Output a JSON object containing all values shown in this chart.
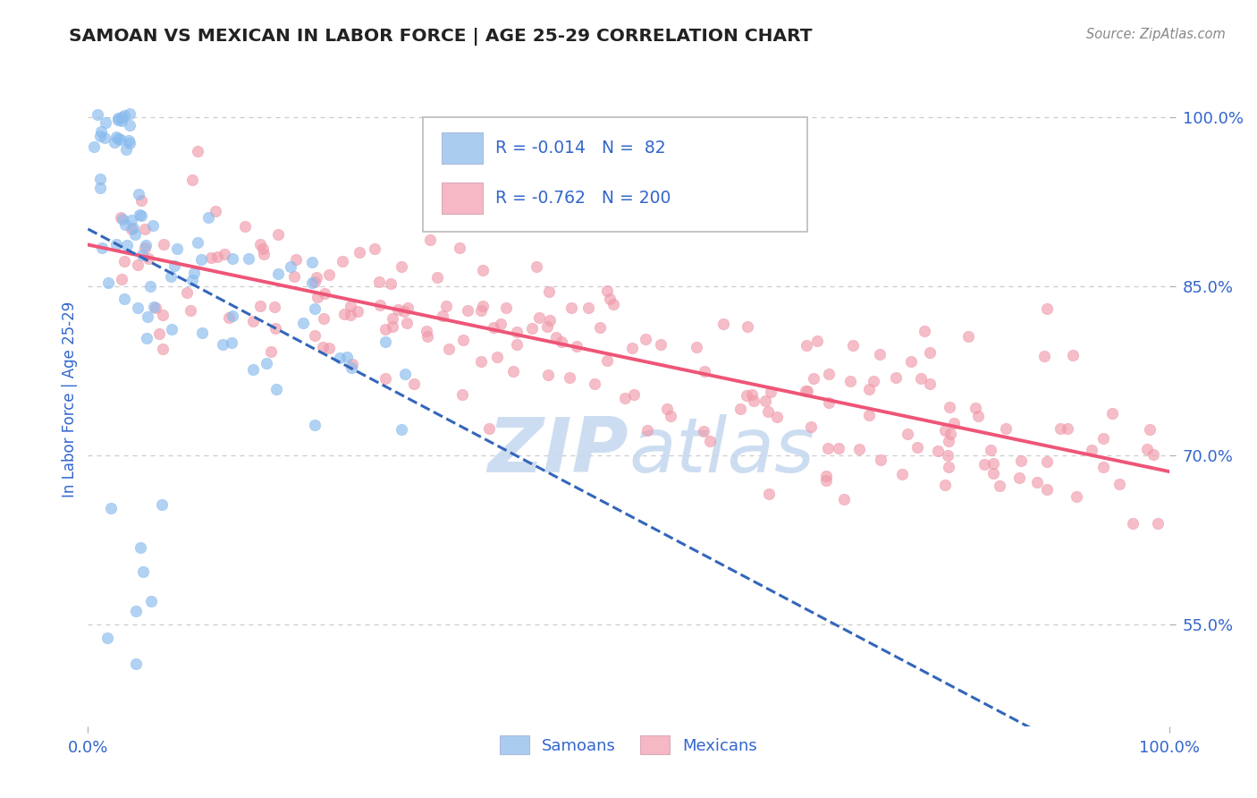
{
  "title": "SAMOAN VS MEXICAN IN LABOR FORCE | AGE 25-29 CORRELATION CHART",
  "source_text": "Source: ZipAtlas.com",
  "ylabel": "In Labor Force | Age 25-29",
  "xlim": [
    0.0,
    1.0
  ],
  "ylim": [
    0.46,
    1.04
  ],
  "ytick_labels": [
    "55.0%",
    "70.0%",
    "85.0%",
    "100.0%"
  ],
  "ytick_values": [
    0.55,
    0.7,
    0.85,
    1.0
  ],
  "xtick_labels": [
    "0.0%",
    "100.0%"
  ],
  "r_samoan": -0.014,
  "n_samoan": 82,
  "r_mexican": -0.762,
  "n_mexican": 200,
  "samoan_color": "#88bbee",
  "mexican_color": "#f09aaa",
  "samoan_line_color": "#3366bb",
  "mexican_line_color": "#ee5577",
  "background_color": "#ffffff",
  "grid_color": "#cccccc",
  "title_color": "#222222",
  "axis_label_color": "#3366cc",
  "tick_label_color": "#3366cc",
  "legend_samoan_color": "#aaccee",
  "legend_mexican_color": "#f5b8c4",
  "watermark_color": "#c5d8ef",
  "source_color": "#888888"
}
